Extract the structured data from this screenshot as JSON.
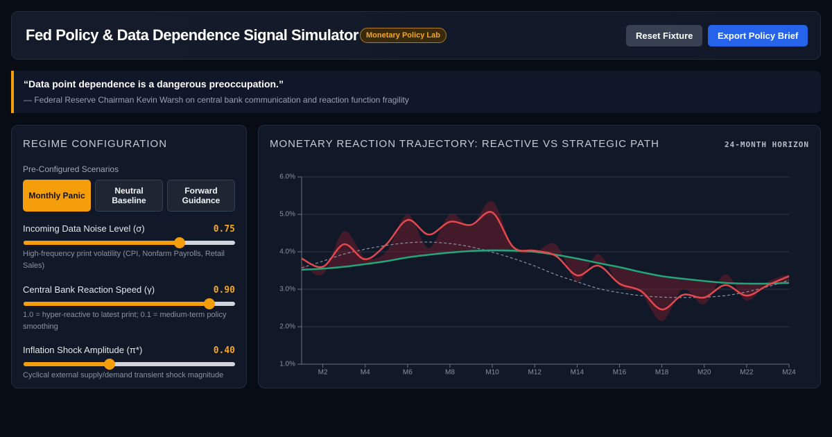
{
  "header": {
    "title": "Fed Policy & Data Dependence Signal Simulator",
    "badge": "Monetary Policy Lab",
    "buttons": [
      "Reset Fixture",
      "Export Policy Brief"
    ]
  },
  "quote": {
    "text": "“Data point dependence is a dangerous preoccupation.”",
    "attribution": "— Federal Reserve Chairman Kevin Warsh on central bank communication and reaction function fragility"
  },
  "config": {
    "title": "REGIME CONFIGURATION",
    "scenarios_label": "Pre-Configured Scenarios",
    "scenarios": [
      "Monthly Panic",
      "Neutral Baseline",
      "Forward Guidance"
    ],
    "active_scenario": 0,
    "sliders": [
      {
        "label": "Incoming Data Noise Level (σ)",
        "value": 0.75,
        "value_label": "0.75",
        "range": [
          0,
          1
        ],
        "description": "High-frequency print volatility (CPI, Nonfarm Payrolls, Retail Sales)"
      },
      {
        "label": "Central Bank Reaction Speed (γ)",
        "value": 0.9,
        "value_label": "0.90",
        "range": [
          0,
          1
        ],
        "description": "1.0 = hyper-reactive to latest print; 0.1 = medium-term policy smoothing"
      },
      {
        "label": "Inflation Shock Amplitude (π*)",
        "value": 0.4,
        "value_label": "0.40",
        "range": [
          0,
          1
        ],
        "description": "Cyclical external supply/demand transient shock magnitude"
      }
    ]
  },
  "chart_panel": {
    "title": "MONETARY REACTION TRAJECTORY: REACTIVE VS STRATEGIC PATH",
    "horizon": "24-MONTH HORIZON"
  },
  "chart_data": {
    "type": "line",
    "categories": [
      null,
      "M2",
      null,
      "M4",
      null,
      "M6",
      null,
      "M8",
      null,
      "M10",
      null,
      "M12",
      null,
      "M14",
      null,
      "M16",
      null,
      "M18",
      null,
      "M20",
      null,
      "M22",
      null,
      "M24"
    ],
    "ylim": [
      1,
      6
    ],
    "yticks": [
      {
        "value": 1,
        "label": "1.0%"
      },
      {
        "value": 2,
        "label": "2.0%"
      },
      {
        "value": 3,
        "label": "3.0%"
      },
      {
        "value": 4,
        "label": "4.0%"
      },
      {
        "value": 5,
        "label": "5.0%"
      },
      {
        "value": 6,
        "label": "6.0%"
      }
    ],
    "grid": true,
    "series": [
      {
        "color": "#7f1d2d",
        "style": "area",
        "values": [
          3.7,
          3.4,
          4.55,
          3.85,
          4.0,
          5.0,
          4.1,
          5.0,
          4.7,
          5.35,
          4.1,
          4.0,
          4.2,
          3.2,
          3.94,
          3.1,
          2.9,
          2.15,
          3.0,
          2.6,
          3.4,
          2.7,
          3.2,
          3.4
        ]
      },
      {
        "color": "#8a93a3",
        "style": "dashed",
        "values": [
          3.57,
          3.75,
          3.94,
          4.07,
          4.17,
          4.24,
          4.26,
          4.22,
          4.13,
          3.99,
          3.82,
          3.62,
          3.39,
          3.2,
          3.02,
          2.91,
          2.83,
          2.79,
          2.78,
          2.79,
          2.83,
          2.93,
          3.07,
          3.24
        ]
      },
      {
        "color": "#22a67a",
        "style": "solid",
        "values": [
          3.52,
          3.55,
          3.6,
          3.67,
          3.75,
          3.85,
          3.92,
          3.98,
          4.02,
          4.04,
          4.03,
          4.0,
          3.92,
          3.82,
          3.7,
          3.59,
          3.46,
          3.35,
          3.28,
          3.22,
          3.17,
          3.15,
          3.15,
          3.17
        ]
      },
      {
        "color": "#e5484d",
        "style": "solid",
        "values": [
          3.82,
          3.6,
          4.2,
          3.8,
          4.2,
          4.85,
          4.46,
          4.8,
          4.72,
          5.05,
          4.12,
          4.03,
          3.89,
          3.37,
          3.63,
          3.15,
          2.96,
          2.46,
          2.85,
          2.78,
          3.11,
          2.83,
          3.11,
          3.35
        ]
      }
    ]
  }
}
